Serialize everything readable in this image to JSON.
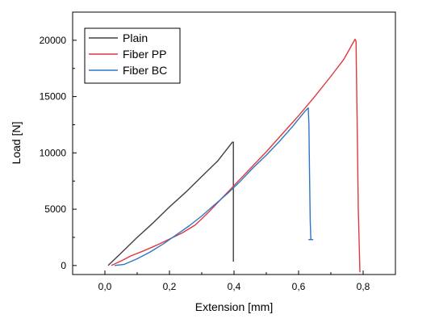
{
  "chart_data": {
    "type": "line",
    "xlabel": "Extension [mm]",
    "ylabel": "Load [N]",
    "xlim": [
      -0.1,
      0.9
    ],
    "ylim": [
      -800,
      22500
    ],
    "x_ticks": [
      {
        "value": 0.0,
        "label": "0,0"
      },
      {
        "value": 0.2,
        "label": "0,2"
      },
      {
        "value": 0.4,
        "label": "0,4"
      },
      {
        "value": 0.6,
        "label": "0,6"
      },
      {
        "value": 0.8,
        "label": "0,8"
      }
    ],
    "y_ticks": [
      {
        "value": 0,
        "label": "0"
      },
      {
        "value": 5000,
        "label": "5000"
      },
      {
        "value": 10000,
        "label": "10000"
      },
      {
        "value": 15000,
        "label": "15000"
      },
      {
        "value": 20000,
        "label": "20000"
      }
    ],
    "grid": false,
    "legend_position": "top-left",
    "series": [
      {
        "name": "Plain",
        "color": "#404040",
        "x": [
          0.01,
          0.05,
          0.1,
          0.15,
          0.2,
          0.25,
          0.3,
          0.35,
          0.395,
          0.398,
          0.398
        ],
        "y": [
          0,
          1100,
          2500,
          3800,
          5200,
          6500,
          7900,
          9300,
          10950,
          10950,
          350
        ]
      },
      {
        "name": "Fiber PP",
        "color": "#e0393e",
        "x": [
          0.02,
          0.05,
          0.08,
          0.12,
          0.16,
          0.2,
          0.24,
          0.28,
          0.32,
          0.36,
          0.4,
          0.45,
          0.5,
          0.55,
          0.6,
          0.65,
          0.7,
          0.74,
          0.775,
          0.778,
          0.785,
          0.79
        ],
        "y": [
          0,
          400,
          850,
          1300,
          1800,
          2350,
          2900,
          3600,
          4700,
          5900,
          7100,
          8600,
          10100,
          11700,
          13300,
          15000,
          16800,
          18300,
          20100,
          19900,
          5000,
          -600
        ]
      },
      {
        "name": "Fiber BC",
        "color": "#2e75c9",
        "x": [
          0.03,
          0.06,
          0.1,
          0.14,
          0.18,
          0.22,
          0.26,
          0.3,
          0.34,
          0.38,
          0.42,
          0.46,
          0.5,
          0.54,
          0.58,
          0.62,
          0.63,
          0.632,
          0.634,
          0.636,
          0.638
        ],
        "y": [
          0,
          100,
          600,
          1200,
          1900,
          2700,
          3500,
          4400,
          5400,
          6400,
          7500,
          8700,
          9800,
          11000,
          12300,
          13700,
          14000,
          12500,
          8000,
          4000,
          2300
        ]
      }
    ]
  }
}
